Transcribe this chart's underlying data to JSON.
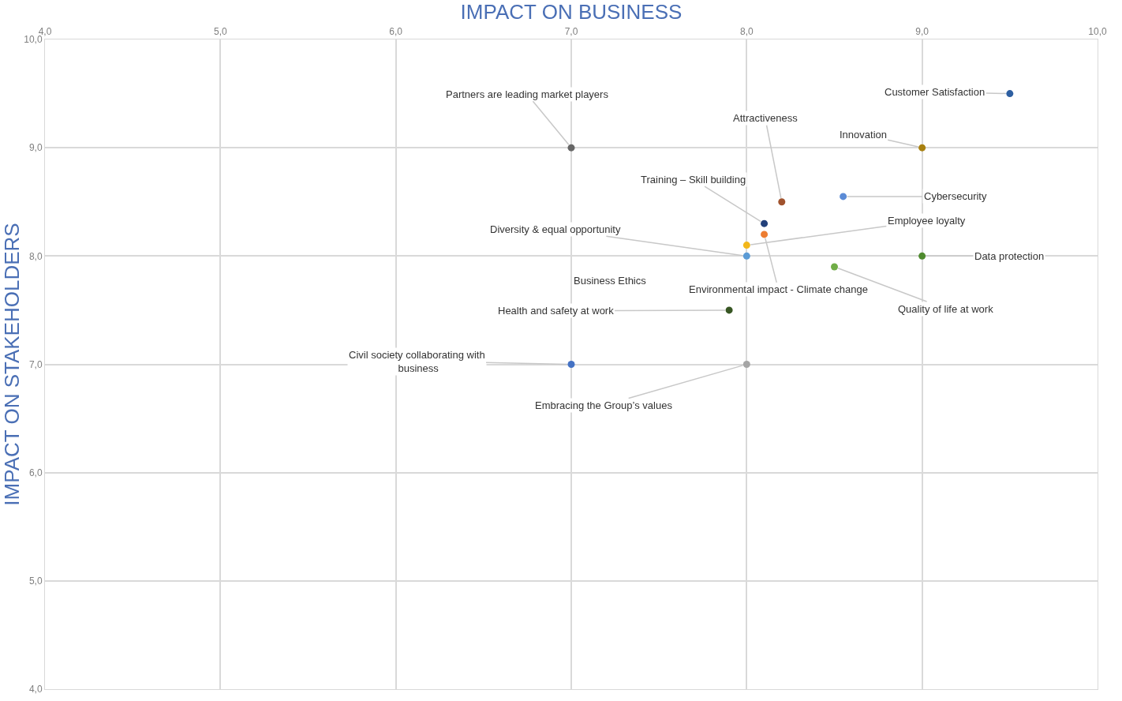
{
  "chart_data": {
    "type": "scatter",
    "xlabel": "IMPACT ON BUSINESS",
    "ylabel": "IMPACT ON STAKEHOLDERS",
    "xlim": [
      4,
      10
    ],
    "ylim": [
      4,
      10
    ],
    "xticks": [
      {
        "value": 4,
        "label": "4,0"
      },
      {
        "value": 5,
        "label": "5,0"
      },
      {
        "value": 6,
        "label": "6,0"
      },
      {
        "value": 7,
        "label": "7,0"
      },
      {
        "value": 8,
        "label": "8,0"
      },
      {
        "value": 9,
        "label": "9,0"
      },
      {
        "value": 10,
        "label": "10,0"
      }
    ],
    "yticks": [
      {
        "value": 4,
        "label": "4,0"
      },
      {
        "value": 5,
        "label": "5,0"
      },
      {
        "value": 6,
        "label": "6,0"
      },
      {
        "value": 7,
        "label": "7,0"
      },
      {
        "value": 8,
        "label": "8,0"
      },
      {
        "value": 9,
        "label": "9,0"
      },
      {
        "value": 10,
        "label": "10,0"
      }
    ],
    "grid": true,
    "legend": false,
    "marker": "circle",
    "series": [
      {
        "name": "Customer Satisfaction",
        "color": "#2e5fa1",
        "x": [
          9.5
        ],
        "values": [
          9.5
        ]
      },
      {
        "name": "Innovation",
        "color": "#a8800f",
        "x": [
          9.0
        ],
        "values": [
          9.0
        ]
      },
      {
        "name": "Partners are leading market players",
        "color": "#666666",
        "x": [
          7.0
        ],
        "values": [
          9.0
        ]
      },
      {
        "name": "Attractiveness",
        "color": "#a0522d",
        "x": [
          8.2
        ],
        "values": [
          8.5
        ]
      },
      {
        "name": "Cybersecurity",
        "color": "#5b8bd6",
        "x": [
          8.55
        ],
        "values": [
          8.55
        ]
      },
      {
        "name": "Training – Skill building",
        "color": "#22407a",
        "x": [
          8.1
        ],
        "values": [
          8.3
        ]
      },
      {
        "name": "Employee loyalty",
        "color": "#f2b71a",
        "x": [
          8.0
        ],
        "values": [
          8.1
        ]
      },
      {
        "name": "Diversity & equal opportunity",
        "color": "#5b9bd5",
        "x": [
          8.0
        ],
        "values": [
          8.0
        ]
      },
      {
        "name": "Environmental impact - Climate change",
        "color": "#ed7d31",
        "x": [
          8.1
        ],
        "values": [
          8.2
        ]
      },
      {
        "name": "Quality of life at work",
        "color": "#70ad47",
        "x": [
          8.5
        ],
        "values": [
          7.9
        ]
      },
      {
        "name": "Data protection",
        "color": "#4e8a2e",
        "x": [
          9.0
        ],
        "values": [
          8.0
        ]
      },
      {
        "name": "Health and safety at work",
        "color": "#375623",
        "x": [
          7.9
        ],
        "values": [
          7.5
        ]
      },
      {
        "name": "Civil society collaborating with$_{}$ business",
        "color": "#4472c4",
        "x": [
          7.0
        ],
        "values": [
          7.0
        ]
      },
      {
        "name": "Embracing the Group’s values",
        "color": "#a5a5a5",
        "x": [
          8.0
        ],
        "values": [
          7.0
        ]
      }
    ],
    "annotations": [
      "Business Ethics"
    ]
  }
}
